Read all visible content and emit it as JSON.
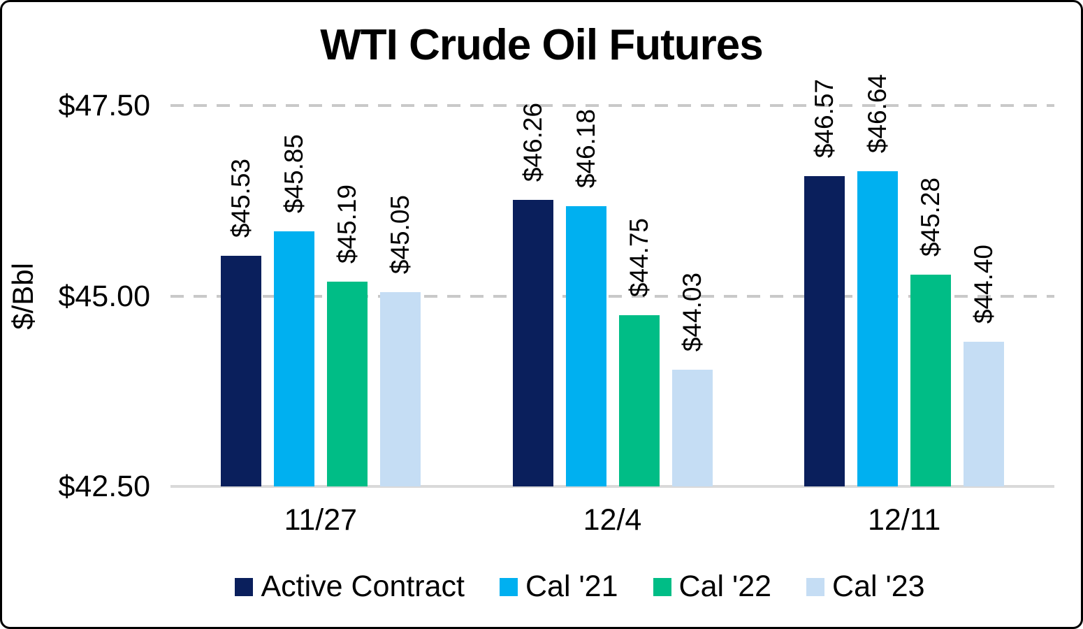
{
  "title": "WTI Crude Oil Futures",
  "chart_data": {
    "type": "bar",
    "title": "WTI Crude Oil Futures",
    "ylabel": "$/Bbl",
    "xlabel": "",
    "categories": [
      "11/27",
      "12/4",
      "12/11"
    ],
    "series": [
      {
        "name": "Active Contract",
        "color": "#0A1F5C",
        "values": [
          45.53,
          46.26,
          46.57
        ],
        "data_labels": [
          "$45.53",
          "$46.26",
          "$46.57"
        ]
      },
      {
        "name": "Cal '21",
        "color": "#00B0F0",
        "values": [
          45.85,
          46.18,
          46.64
        ],
        "data_labels": [
          "$45.85",
          "$46.18",
          "$46.64"
        ]
      },
      {
        "name": "Cal '22",
        "color": "#00BD86",
        "values": [
          45.19,
          44.75,
          45.28
        ],
        "data_labels": [
          "$45.19",
          "$44.75",
          "$45.28"
        ]
      },
      {
        "name": "Cal '23",
        "color": "#C5DDF4",
        "values": [
          45.05,
          44.03,
          44.4
        ],
        "data_labels": [
          "$45.05",
          "$44.03",
          "$44.40"
        ]
      }
    ],
    "ylim": [
      42.5,
      47.5
    ],
    "yticks": [
      {
        "value": 42.5,
        "label": "$42.50"
      },
      {
        "value": 45.0,
        "label": "$45.00"
      },
      {
        "value": 47.5,
        "label": "$47.50"
      }
    ],
    "grid": "horizontal-dashed",
    "gridline_color": "#C9C9C9",
    "axis_line_color": "#D9D9D9",
    "legend_position": "bottom",
    "data_label_rotation": -90
  }
}
